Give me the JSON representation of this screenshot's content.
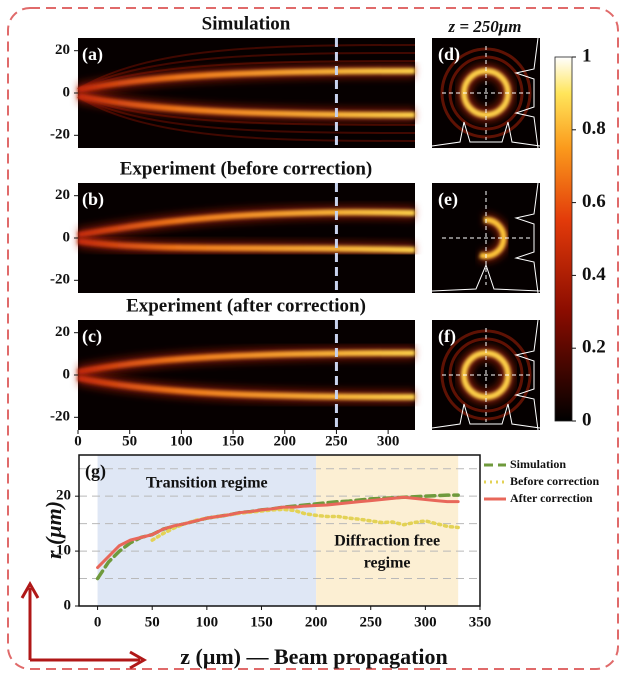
{
  "heatmaps": {
    "column_title": "z = 250μm",
    "ylim": [
      -26,
      26
    ],
    "yticks": [
      20,
      0,
      -20
    ],
    "xlim": [
      0,
      326
    ],
    "xticks": [
      0,
      50,
      100,
      150,
      200,
      250,
      300
    ],
    "marker_z": 250,
    "rows": [
      {
        "title": "Simulation",
        "label": "(a)",
        "profile_label": "(d)"
      },
      {
        "title": "Experiment (before correction)",
        "label": "(b)",
        "profile_label": "(e)"
      },
      {
        "title": "Experiment (after correction)",
        "label": "(c)",
        "profile_label": "(f)"
      }
    ]
  },
  "colorbar": {
    "lim": [
      0,
      1
    ],
    "ticks": [
      0,
      0.2,
      0.4,
      0.6,
      0.8,
      1
    ]
  },
  "chart_data": {
    "type": "line",
    "panel_label": "(g)",
    "x_label": "z (μm) — Beam propagation",
    "y_label": "r (μm)",
    "x": [
      0,
      10,
      20,
      30,
      40,
      50,
      60,
      70,
      80,
      90,
      100,
      110,
      120,
      130,
      140,
      150,
      160,
      170,
      180,
      190,
      200,
      210,
      220,
      230,
      240,
      250,
      260,
      270,
      280,
      290,
      300,
      310,
      320,
      330
    ],
    "series": [
      {
        "name": "Simulation",
        "color": "#6f9a3c",
        "style": "dashed",
        "values": [
          5,
          8,
          10,
          11.5,
          12.5,
          13,
          14,
          14.5,
          15,
          15.5,
          16,
          16.3,
          16.6,
          17,
          17.2,
          17.5,
          17.7,
          18,
          18.2,
          18.4,
          18.6,
          18.8,
          19,
          19.1,
          19.3,
          19.5,
          19.6,
          19.7,
          19.8,
          19.9,
          20,
          20.1,
          20.2,
          20.2
        ]
      },
      {
        "name": "Before correction",
        "color": "#e3d255",
        "style": "dotted",
        "values": [
          null,
          null,
          null,
          null,
          null,
          12,
          13.2,
          14.2,
          15,
          15.6,
          16,
          16.3,
          16.6,
          16.9,
          17.1,
          17.3,
          17.5,
          17.6,
          17.4,
          16.8,
          16.5,
          16.3,
          16.3,
          16,
          15.8,
          15.5,
          15.2,
          15.3,
          14.8,
          15.2,
          15.5,
          15,
          14.5,
          14.3
        ]
      },
      {
        "name": "After correction",
        "color": "#e8675a",
        "style": "solid",
        "values": [
          7,
          9,
          11,
          12,
          12.5,
          13,
          14,
          14.6,
          15,
          15.5,
          16,
          16.3,
          16.6,
          17,
          17.2,
          17.5,
          17.7,
          18,
          18,
          18.2,
          18.3,
          18.4,
          18.6,
          18.8,
          19,
          19.2,
          19.4,
          19.6,
          19.8,
          19.6,
          19.4,
          19.2,
          19,
          19
        ]
      }
    ],
    "regions": [
      {
        "lines": [
          "Transition regime"
        ],
        "range": [
          0,
          200
        ],
        "color": "#dfe7f5"
      },
      {
        "lines": [
          "Diffraction free",
          "regime"
        ],
        "range": [
          200,
          330
        ],
        "color": "#fcefd3"
      }
    ],
    "xlim": [
      -17,
      350
    ],
    "xticks": [
      0,
      50,
      100,
      150,
      200,
      250,
      300,
      350
    ],
    "ylim": [
      0,
      27.5
    ],
    "yticks": [
      0,
      10,
      20
    ],
    "ygrid": [
      5,
      10,
      15,
      20,
      25
    ],
    "legend": "upper right"
  }
}
